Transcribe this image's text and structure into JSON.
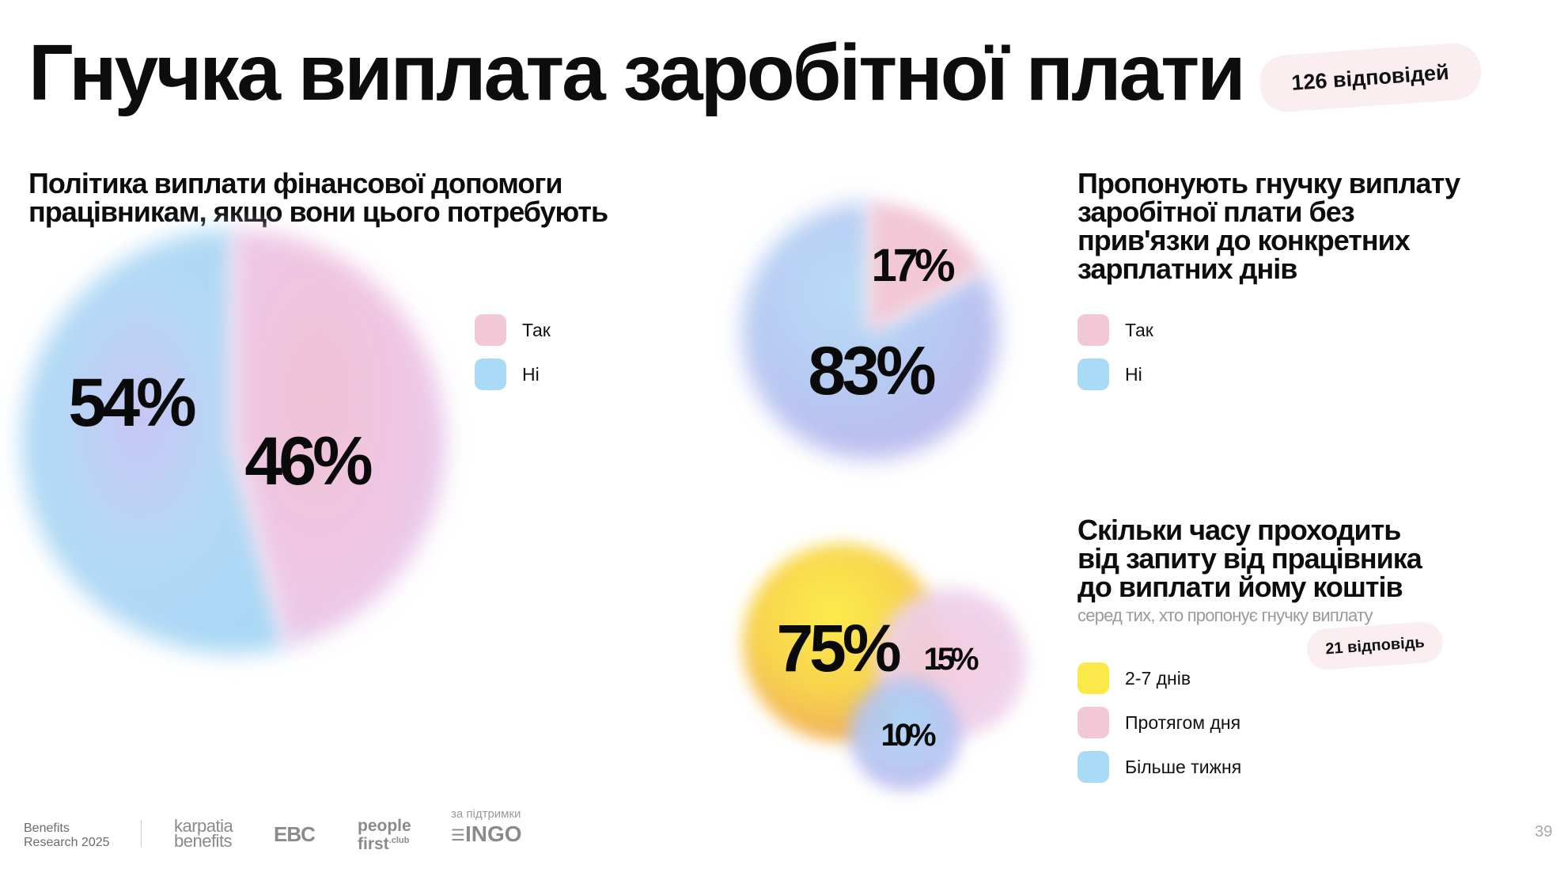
{
  "title": "Гнучка виплата заробітної плати",
  "responses_badge": "126 відповідей",
  "colors": {
    "pink": "#f2c2d2",
    "blue": "#a9d8f5",
    "yellow": "#fbe94a",
    "orange": "#f3b056",
    "lavender": "#c3c2f2"
  },
  "chart_data": [
    {
      "type": "pie",
      "title_lines": [
        "Політика виплати фінансової допомоги",
        "працівникам, якщо вони цього потребують"
      ],
      "categories": [
        "Так",
        "Ні"
      ],
      "values": [
        46,
        54
      ],
      "labels": [
        "46%",
        "54%"
      ],
      "legend": [
        "Так",
        "Ні"
      ]
    },
    {
      "type": "pie",
      "title_lines": [
        "Пропонують гнучку виплату",
        "заробітної плати без",
        "прив'язки до конкретних",
        "зарплатних днів"
      ],
      "categories": [
        "Так",
        "Ні"
      ],
      "values": [
        17,
        83
      ],
      "labels": [
        "17%",
        "83%"
      ],
      "legend": [
        "Так",
        "Ні"
      ]
    },
    {
      "type": "bubble",
      "title_lines": [
        "Скільки часу проходить",
        "від запиту від працівника",
        "до виплати йому коштів"
      ],
      "subtitle": "серед тих, хто пропонує гнучку виплату",
      "responses": "21 відповідь",
      "categories": [
        "2-7 днів",
        "Протягом дня",
        "Більше тижня"
      ],
      "values": [
        75,
        15,
        10
      ],
      "labels": [
        "75%",
        "15%",
        "10%"
      ],
      "legend": [
        "2-7 днів",
        "Протягом дня",
        "Більше тижня"
      ]
    }
  ],
  "footer": {
    "brand_line1": "Benefits",
    "brand_line2": "Research 2025",
    "logo_karpatia_1": "karpatia",
    "logo_karpatia_2": "benefits",
    "logo_ebc": "EBC",
    "logo_people_1": "people",
    "logo_people_2": "first",
    "logo_people_sup": ".club",
    "support_label": "за підтримки",
    "logo_ingo": "INGO",
    "page_number": "39"
  }
}
